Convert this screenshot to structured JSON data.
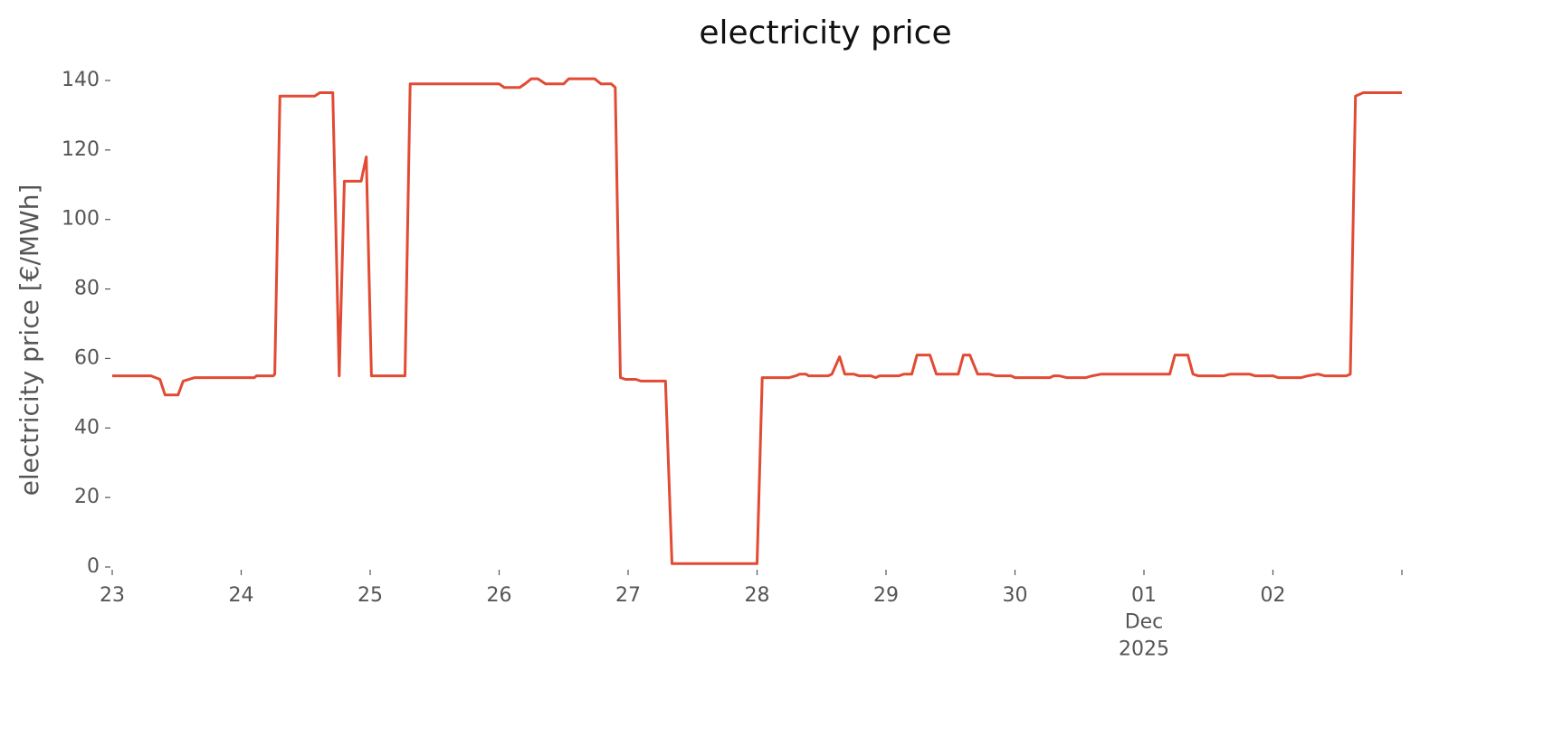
{
  "chart_data": {
    "type": "line",
    "title": "electricity price",
    "ylabel": "electricity price [€/MWh]",
    "x": [
      0,
      0.3,
      0.37,
      0.41,
      0.51,
      0.55,
      0.64,
      1.1,
      1.12,
      1.25,
      1.26,
      1.3,
      1.57,
      1.61,
      1.71,
      1.76,
      1.8,
      1.93,
      1.97,
      2.01,
      2.27,
      2.31,
      3.0,
      3.04,
      3.16,
      3.2,
      3.25,
      3.3,
      3.36,
      3.5,
      3.54,
      3.74,
      3.79,
      3.87,
      3.9,
      3.94,
      3.98,
      4.06,
      4.1,
      4.29,
      4.34,
      5.0,
      5.04,
      5.25,
      5.3,
      5.33,
      5.38,
      5.4,
      5.55,
      5.58,
      5.64,
      5.68,
      5.75,
      5.79,
      5.88,
      5.92,
      5.95,
      6.1,
      6.14,
      6.2,
      6.24,
      6.34,
      6.39,
      6.56,
      6.6,
      6.65,
      6.71,
      6.8,
      6.85,
      6.97,
      7.0,
      7.27,
      7.3,
      7.34,
      7.4,
      7.55,
      7.6,
      7.67,
      8.2,
      8.24,
      8.34,
      8.38,
      8.42,
      8.62,
      8.67,
      8.82,
      8.86,
      9.0,
      9.04,
      9.22,
      9.27,
      9.35,
      9.4,
      9.57,
      9.6,
      9.64,
      9.7,
      10.0
    ],
    "series": [
      {
        "name": "electricity price",
        "color": "#e24a33",
        "values": [
          55,
          55,
          54,
          49.5,
          49.5,
          53.5,
          54.5,
          54.5,
          55,
          55,
          55.5,
          135.5,
          135.5,
          136.5,
          136.5,
          55,
          111,
          111,
          118,
          55,
          55,
          139,
          139,
          138,
          138,
          139,
          140.5,
          140.5,
          139,
          139,
          140.5,
          140.5,
          139,
          139,
          138,
          54.5,
          54,
          54,
          53.5,
          53.5,
          1,
          1,
          54.5,
          54.5,
          55,
          55.5,
          55.5,
          55,
          55,
          55.5,
          60.5,
          55.5,
          55.5,
          55,
          55,
          54.5,
          55,
          55,
          55.5,
          55.5,
          61,
          61,
          55.5,
          55.5,
          61,
          61,
          55.5,
          55.5,
          55,
          55,
          54.5,
          54.5,
          55,
          55,
          54.5,
          54.5,
          55,
          55.5,
          55.5,
          61,
          61,
          55.5,
          55,
          55,
          55.5,
          55.5,
          55,
          55,
          54.5,
          54.5,
          55,
          55.5,
          55,
          55,
          55.5,
          135.5,
          136.5,
          136.5
        ]
      }
    ],
    "xlim": [
      0,
      10
    ],
    "xticks": [
      {
        "value": 0,
        "label": "23"
      },
      {
        "value": 1,
        "label": "24"
      },
      {
        "value": 2,
        "label": "25"
      },
      {
        "value": 3,
        "label": "26"
      },
      {
        "value": 4,
        "label": "27"
      },
      {
        "value": 5,
        "label": "28"
      },
      {
        "value": 6,
        "label": "29"
      },
      {
        "value": 7,
        "label": "30"
      },
      {
        "value": 8,
        "label": "01\nDec\n2025"
      },
      {
        "value": 9,
        "label": "02"
      },
      {
        "value": 10,
        "label": null
      }
    ],
    "ylim": [
      0,
      140
    ],
    "yticks": [
      0,
      20,
      40,
      60,
      80,
      100,
      120,
      140
    ],
    "grid": false
  }
}
